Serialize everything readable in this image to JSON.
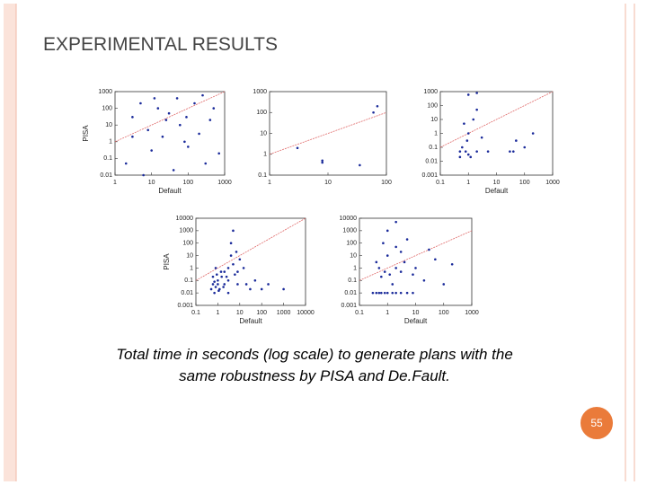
{
  "slide": {
    "title": "EXPERIMENTAL RESULTS",
    "caption": [
      "Total time in seconds (log scale) to generate plans with the",
      "same robustness by PISA and De.Fault."
    ],
    "page_number": "55"
  },
  "chart_data": [
    {
      "type": "scatter",
      "xlabel": "Default",
      "ylabel": "PISA",
      "log_x": true,
      "log_y": true,
      "xlim": [
        1,
        1000
      ],
      "ylim": [
        0.01,
        1000
      ],
      "xticks": [
        1,
        10,
        100,
        1000
      ],
      "yticks": [
        0.01,
        0.1,
        1,
        10,
        100,
        1000
      ],
      "diagonal": true,
      "diagonal_color": "#e06a6a",
      "color": "#1a2a9a",
      "x": [
        2,
        3,
        5,
        8,
        10,
        15,
        20,
        30,
        40,
        50,
        60,
        80,
        100,
        150,
        200,
        300,
        400,
        500,
        700,
        3,
        6,
        25,
        12,
        250,
        90
      ],
      "y": [
        0.05,
        30,
        200,
        5,
        0.3,
        100,
        2,
        50,
        0.02,
        400,
        10,
        1,
        0.5,
        200,
        3,
        0.05,
        20,
        100,
        0.2,
        2,
        0.01,
        20,
        400,
        600,
        30
      ]
    },
    {
      "type": "scatter",
      "log_x": true,
      "log_y": true,
      "xlim": [
        1,
        100
      ],
      "ylim": [
        0.1,
        1000
      ],
      "xticks": [
        1,
        10,
        100
      ],
      "yticks": [
        0.1,
        1,
        10,
        100,
        1000
      ],
      "diagonal": true,
      "diagonal_color": "#e06a6a",
      "color": "#1a2a9a",
      "x": [
        8,
        8,
        35,
        60,
        70,
        3
      ],
      "y": [
        0.5,
        0.4,
        0.3,
        100,
        200,
        2
      ]
    },
    {
      "type": "scatter",
      "xlabel": "Default",
      "log_x": true,
      "log_y": true,
      "xlim": [
        0.1,
        1000
      ],
      "ylim": [
        0.001,
        1000
      ],
      "xticks": [
        0.1,
        1,
        10,
        100,
        1000
      ],
      "yticks": [
        0.001,
        0.01,
        0.1,
        1,
        10,
        100,
        1000
      ],
      "diagonal": true,
      "diagonal_color": "#e06a6a",
      "color": "#1a2a9a",
      "x": [
        0.5,
        0.5,
        0.6,
        0.8,
        1,
        1,
        1.5,
        2,
        2,
        3,
        5,
        0.7,
        1.2,
        30,
        40,
        50,
        100,
        200,
        0.9,
        1,
        2
      ],
      "y": [
        0.05,
        0.02,
        0.1,
        0.05,
        0.03,
        1,
        10,
        0.05,
        50,
        0.5,
        0.05,
        5,
        0.02,
        0.05,
        0.05,
        0.3,
        0.1,
        1,
        0.3,
        600,
        800
      ]
    },
    {
      "type": "scatter",
      "xlabel": "Default",
      "ylabel": "PISA",
      "log_x": true,
      "log_y": true,
      "xlim": [
        0.1,
        10000
      ],
      "ylim": [
        0.001,
        10000
      ],
      "xticks": [
        0.1,
        1,
        10,
        100,
        1000,
        10000
      ],
      "yticks": [
        0.001,
        0.01,
        0.1,
        1,
        10,
        100,
        1000,
        10000
      ],
      "diagonal": true,
      "diagonal_color": "#e06a6a",
      "color": "#1a2a9a",
      "x": [
        0.5,
        0.6,
        0.7,
        0.8,
        1,
        1,
        1.2,
        1.5,
        2,
        2,
        3,
        3,
        4,
        5,
        6,
        8,
        10,
        0.9,
        1.1,
        0.7,
        1.8,
        2.5,
        4,
        5,
        8,
        15,
        20,
        30,
        50,
        100,
        200,
        1000,
        3,
        0.6,
        1.4,
        7,
        0.8
      ],
      "y": [
        0.02,
        0.05,
        0.01,
        0.03,
        0.05,
        0.1,
        0.02,
        0.2,
        0.5,
        0.05,
        1,
        0.1,
        10,
        2,
        0.3,
        0.05,
        5,
        0.3,
        0.015,
        0.08,
        0.03,
        0.2,
        100,
        1000,
        0.5,
        1,
        0.05,
        0.02,
        0.1,
        0.02,
        0.05,
        0.02,
        0.01,
        0.2,
        0.5,
        20,
        1
      ]
    },
    {
      "type": "scatter",
      "xlabel": "Default",
      "log_x": true,
      "log_y": true,
      "xlim": [
        0.1,
        1000
      ],
      "ylim": [
        0.001,
        10000
      ],
      "xticks": [
        0.1,
        1,
        10,
        100,
        1000
      ],
      "yticks": [
        0.001,
        0.01,
        0.1,
        1,
        10,
        100,
        1000,
        10000
      ],
      "diagonal": true,
      "diagonal_color": "#e06a6a",
      "color": "#1a2a9a",
      "x": [
        0.3,
        0.4,
        0.5,
        0.6,
        0.8,
        1,
        1.5,
        2,
        3,
        5,
        8,
        0.5,
        0.7,
        1,
        1,
        2,
        2,
        3,
        4,
        5,
        10,
        20,
        50,
        100,
        200,
        0.4,
        0.6,
        1.5,
        3,
        8,
        30,
        0.8,
        2,
        1.2
      ],
      "y": [
        0.01,
        0.01,
        0.01,
        0.01,
        0.01,
        0.01,
        0.01,
        0.01,
        0.01,
        0.01,
        0.01,
        1,
        100,
        10,
        1000,
        5000,
        50,
        0.5,
        3,
        200,
        1,
        0.1,
        5,
        0.05,
        2,
        3,
        0.2,
        0.05,
        20,
        0.3,
        30,
        0.5,
        1,
        0.3
      ]
    }
  ]
}
